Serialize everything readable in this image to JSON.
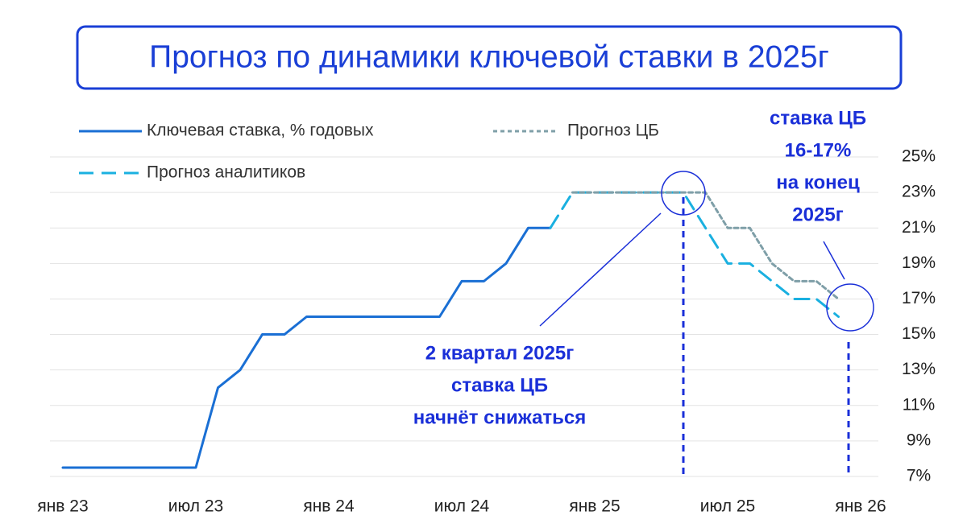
{
  "chart_data": {
    "type": "line",
    "title": "Прогноз по динамики ключевой ставки в 2025г",
    "categories": [
      "янв 23",
      null,
      null,
      null,
      null,
      null,
      "июл 23",
      null,
      null,
      null,
      null,
      null,
      "янв 24",
      null,
      null,
      null,
      null,
      null,
      "июл 24",
      null,
      null,
      null,
      null,
      null,
      "янв 25",
      null,
      null,
      null,
      null,
      null,
      "июл 25",
      null,
      null,
      null,
      null,
      null,
      "янв 26"
    ],
    "series": [
      {
        "name": "Ключевая ставка, % годовых",
        "color": "#1a6fd4",
        "style": "solid",
        "values": [
          7.5,
          7.5,
          7.5,
          7.5,
          7.5,
          7.5,
          7.5,
          12,
          13,
          15,
          15,
          16,
          16,
          16,
          16,
          16,
          16,
          16,
          18,
          18,
          19,
          21,
          21,
          null,
          null,
          null,
          null,
          null,
          null,
          null,
          null,
          null,
          null,
          null,
          null,
          null,
          null
        ]
      },
      {
        "name": "Прогноз аналитиков",
        "color": "#1ab0e0",
        "style": "dashed",
        "values": [
          null,
          null,
          null,
          null,
          null,
          null,
          null,
          null,
          null,
          null,
          null,
          null,
          null,
          null,
          null,
          null,
          null,
          null,
          null,
          null,
          null,
          null,
          21,
          23,
          23,
          23,
          23,
          23,
          23,
          21,
          19,
          19,
          18,
          17,
          17,
          16,
          null
        ]
      },
      {
        "name": "Прогноз ЦБ",
        "color": "#7f9fa8",
        "style": "dotted",
        "values": [
          null,
          null,
          null,
          null,
          null,
          null,
          null,
          null,
          null,
          null,
          null,
          null,
          null,
          null,
          null,
          null,
          null,
          null,
          null,
          null,
          null,
          null,
          null,
          23,
          23,
          23,
          23,
          23,
          23,
          23,
          21,
          21,
          19,
          18,
          18,
          17,
          null
        ]
      }
    ],
    "ylim": [
      7,
      25
    ],
    "yticks": [
      {
        "value": 7,
        "label": "7%"
      },
      {
        "value": 9,
        "label": "9%"
      },
      {
        "value": 11,
        "label": "11%"
      },
      {
        "value": 13,
        "label": "13%"
      },
      {
        "value": 15,
        "label": "15%"
      },
      {
        "value": 17,
        "label": "17%"
      },
      {
        "value": 19,
        "label": "19%"
      },
      {
        "value": 21,
        "label": "21%"
      },
      {
        "value": 23,
        "label": "23%"
      },
      {
        "value": 25,
        "label": "25%"
      }
    ],
    "grid": true,
    "annotations": [
      {
        "lines": [
          "2 квартал 2025г",
          "ставка ЦБ",
          "начнёт снижаться"
        ]
      },
      {
        "lines": [
          "ставка ЦБ",
          "16-17%",
          "на конец",
          "2025г"
        ]
      }
    ]
  }
}
